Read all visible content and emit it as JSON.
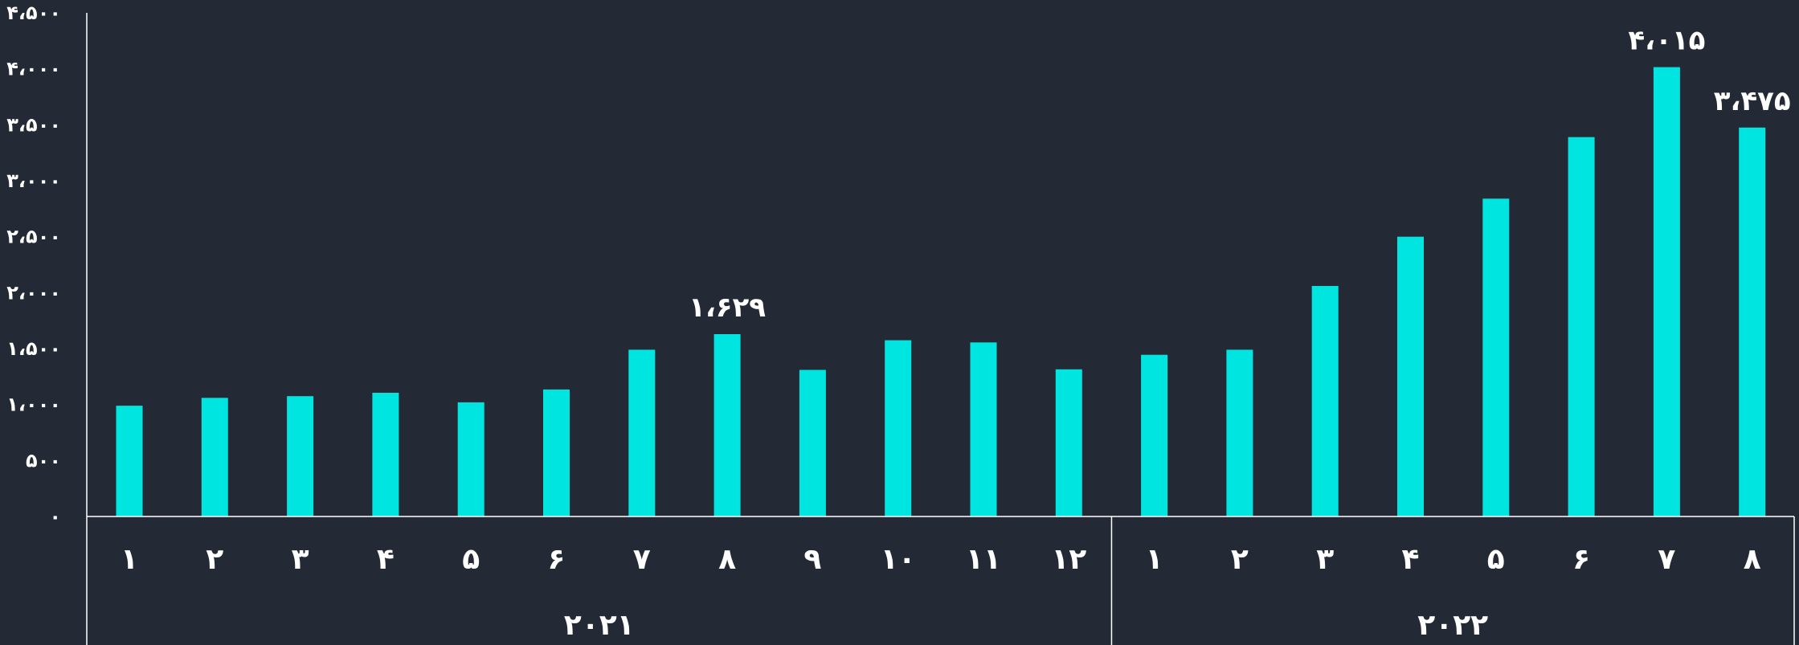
{
  "chart_data": {
    "type": "bar",
    "title": "",
    "xlabel": "",
    "ylabel": "",
    "ylim": [
      0,
      4500
    ],
    "y_ticks": [
      0,
      500,
      1000,
      1500,
      2000,
      2500,
      3000,
      3500,
      4000,
      4500
    ],
    "y_tick_labels": [
      "۰",
      "۵۰۰",
      "۱،۰۰۰",
      "۱،۵۰۰",
      "۲،۰۰۰",
      "۲،۵۰۰",
      "۳،۰۰۰",
      "۳،۵۰۰",
      "۴،۰۰۰",
      "۴،۵۰۰"
    ],
    "groups": [
      {
        "label": "۲۰۲۱",
        "count": 12
      },
      {
        "label": "۲۰۲۲",
        "count": 8
      }
    ],
    "categories": [
      "۱",
      "۲",
      "۳",
      "۴",
      "۵",
      "۶",
      "۷",
      "۸",
      "۹",
      "۱۰",
      "۱۱",
      "۱۲",
      "۱",
      "۲",
      "۳",
      "۴",
      "۵",
      "۶",
      "۷",
      "۸"
    ],
    "values": [
      990,
      1060,
      1075,
      1105,
      1020,
      1135,
      1490,
      1629,
      1310,
      1575,
      1555,
      1315,
      1445,
      1490,
      2060,
      2500,
      2840,
      3390,
      4015,
      3475
    ],
    "data_labels": [
      {
        "index": 7,
        "text": "۱،۶۲۹"
      },
      {
        "index": 18,
        "text": "۴،۰۱۵"
      },
      {
        "index": 19,
        "text": "۳،۴۷۵"
      }
    ],
    "bar_color": "#00e5e0",
    "background_color": "#232a36",
    "axis_color": "#ffffff",
    "grid": false,
    "legend": "none"
  }
}
